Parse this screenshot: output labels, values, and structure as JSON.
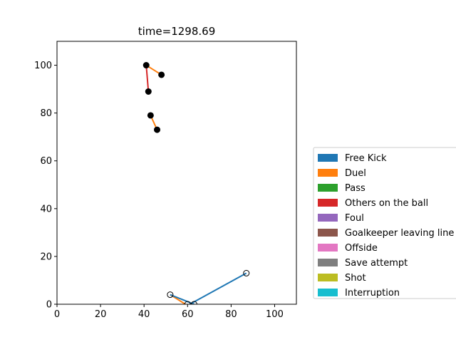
{
  "chart_data": {
    "type": "scatter",
    "title": "time=1298.69",
    "xlabel": "",
    "ylabel": "",
    "xlim": [
      0,
      110
    ],
    "ylim": [
      0,
      110
    ],
    "xticks": [
      0,
      20,
      40,
      60,
      80,
      100
    ],
    "yticks": [
      0,
      20,
      40,
      60,
      80,
      100
    ],
    "grid": false,
    "legend_placement": "right (outside plot)",
    "legend": [
      {
        "label": "Free Kick",
        "color": "#1f77b4"
      },
      {
        "label": "Duel",
        "color": "#ff7f0e"
      },
      {
        "label": "Pass",
        "color": "#2ca02c"
      },
      {
        "label": "Others on the ball",
        "color": "#d62728"
      },
      {
        "label": "Foul",
        "color": "#9467bd"
      },
      {
        "label": "Goalkeeper leaving line",
        "color": "#8c564b"
      },
      {
        "label": "Offside",
        "color": "#e377c2"
      },
      {
        "label": "Save attempt",
        "color": "#7f7f7f"
      },
      {
        "label": "Shot",
        "color": "#bcbd22"
      },
      {
        "label": "Interruption",
        "color": "#17becf"
      }
    ],
    "segments": [
      {
        "event": "Duel",
        "color": "#ff7f0e",
        "from": [
          41,
          100
        ],
        "to": [
          48,
          96
        ]
      },
      {
        "event": "Others on the ball",
        "color": "#d62728",
        "from": [
          41,
          100
        ],
        "to": [
          42,
          89
        ]
      },
      {
        "event": "Duel",
        "color": "#ff7f0e",
        "from": [
          43,
          79
        ],
        "to": [
          46,
          73
        ]
      },
      {
        "event": "Free Kick",
        "color": "#1f77b4",
        "from": [
          87,
          13
        ],
        "to": [
          61,
          0
        ]
      },
      {
        "event": "Duel",
        "color": "#ff7f0e",
        "from": [
          52,
          4
        ],
        "to": [
          59,
          0
        ]
      },
      {
        "event": "Free Kick",
        "color": "#1f77b4",
        "from": [
          52,
          4
        ],
        "to": [
          63,
          0
        ]
      }
    ],
    "points": [
      {
        "x": 41,
        "y": 100,
        "filled": true
      },
      {
        "x": 48,
        "y": 96,
        "filled": true
      },
      {
        "x": 42,
        "y": 89,
        "filled": true
      },
      {
        "x": 43,
        "y": 79,
        "filled": true
      },
      {
        "x": 46,
        "y": 73,
        "filled": true
      },
      {
        "x": 87,
        "y": 13,
        "filled": false
      },
      {
        "x": 52,
        "y": 4,
        "filled": false
      },
      {
        "x": 63,
        "y": 0,
        "filled": false
      },
      {
        "x": 60,
        "y": 0,
        "filled": false
      }
    ]
  }
}
